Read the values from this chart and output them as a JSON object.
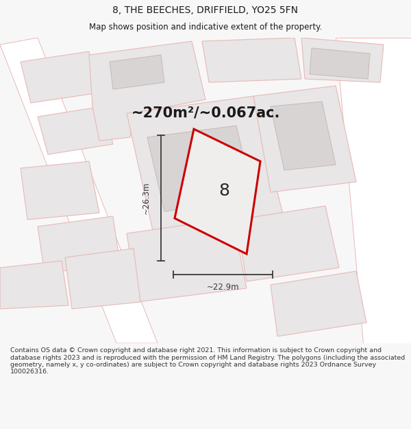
{
  "title": "8, THE BEECHES, DRIFFIELD, YO25 5FN",
  "subtitle": "Map shows position and indicative extent of the property.",
  "area_text": "~270m²/~0.067ac.",
  "label_number": "8",
  "dim_width": "~22.9m",
  "dim_height": "~26.3m",
  "footer": "Contains OS data © Crown copyright and database right 2021. This information is subject to Crown copyright and database rights 2023 and is reproduced with the permission of HM Land Registry. The polygons (including the associated geometry, namely x, y co-ordinates) are subject to Crown copyright and database rights 2023 Ordnance Survey 100026316.",
  "bg_color": "#f8f7f7",
  "parcel_fill": "#e8e6e6",
  "parcel_edge": "#e8b8b8",
  "highlight_fill": "#f0eeed",
  "highlight_outline": "#cc0000",
  "text_color": "#1a1a1a",
  "footer_color": "#333333",
  "dim_line_color": "#3a3a3a",
  "title_fontsize": 10,
  "subtitle_fontsize": 8.5,
  "area_fontsize": 15,
  "label_fontsize": 18,
  "dim_fontsize": 8.5,
  "footer_fontsize": 6.8
}
